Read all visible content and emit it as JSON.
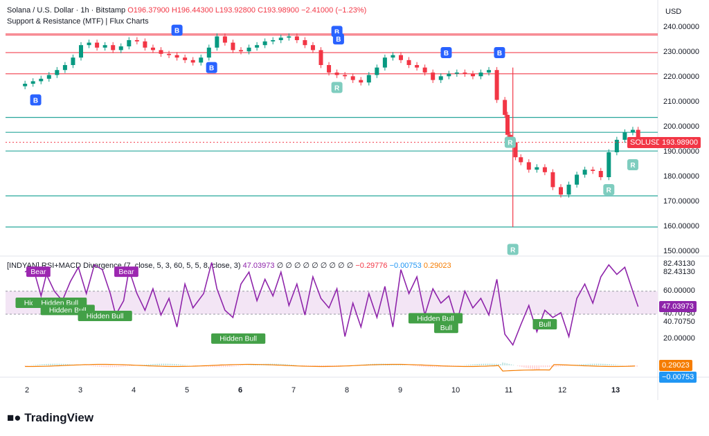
{
  "legend": {
    "symbol": "Solana / U.S. Dollar · 1h · Bitstamp",
    "o": "O196.37900",
    "h": "H196.44300",
    "l": "L193.92800",
    "c": "C193.98900",
    "chg": "−2.41000 (−1.23%)",
    "indicator": "Support & Resistance (MTF) | Flux Charts"
  },
  "rsi_legend": {
    "name": "[INDYAN] RSI+MACD Divergence (7, close, 5, 3, 60, 5, 5, 8, close, 3)",
    "v1": "47.03973",
    "nulls": "∅ ∅ ∅ ∅ ∅ ∅ ∅ ∅ ∅",
    "v2": "−0.29776",
    "v3": "−0.00753",
    "v4": "0.29023"
  },
  "currency": "USD",
  "brand": "TradingView",
  "colors": {
    "up": "#089981",
    "down": "#f23645",
    "rsi": "#8e24aa",
    "support": "#26a69a",
    "resistance": "#f23645",
    "buy": "#2962ff"
  },
  "chart_data": [
    {
      "type": "candlestick",
      "symbol": "SOLUSD",
      "ylim": [
        150,
        240
      ],
      "y_ticks": [
        "240.00000",
        "230.00000",
        "220.00000",
        "210.00000",
        "200.00000",
        "190.00000",
        "180.00000",
        "170.00000",
        "160.00000",
        "150.00000"
      ],
      "x_ticks": [
        "2",
        "3",
        "4",
        "5",
        "6",
        "7",
        "8",
        "9",
        "10",
        "11",
        "12",
        "13"
      ],
      "last_price": "193.98900",
      "last_label": "SOLUSD",
      "x": [
        1.95,
        2.1,
        2.25,
        2.4,
        2.55,
        2.7,
        2.85,
        3.0,
        3.15,
        3.3,
        3.45,
        3.6,
        3.75,
        3.9,
        4.05,
        4.2,
        4.35,
        4.5,
        4.65,
        4.8,
        4.95,
        5.1,
        5.25,
        5.4,
        5.55,
        5.7,
        5.85,
        6.0,
        6.15,
        6.3,
        6.45,
        6.6,
        6.75,
        6.9,
        7.05,
        7.2,
        7.35,
        7.5,
        7.65,
        7.8,
        7.95,
        8.1,
        8.25,
        8.4,
        8.55,
        8.7,
        8.85,
        9.0,
        9.15,
        9.3,
        9.45,
        9.6,
        9.75,
        9.9,
        10.05,
        10.2,
        10.35,
        10.5,
        10.65,
        10.8,
        10.95,
        11.0,
        11.05,
        11.15,
        11.25,
        11.4,
        11.55,
        11.7,
        11.85,
        12.0,
        12.15,
        12.3,
        12.45,
        12.6,
        12.75,
        12.9,
        13.05,
        13.2,
        13.35,
        13.45
      ],
      "close": [
        217.5,
        218.5,
        219.5,
        221,
        223,
        225,
        228,
        233,
        234,
        232,
        233,
        231,
        232.5,
        235,
        234.5,
        232,
        231,
        229.5,
        229,
        228,
        227,
        226,
        228,
        232,
        236.5,
        234,
        231,
        230.5,
        232,
        233,
        234.5,
        235,
        236,
        236.5,
        235,
        233,
        231,
        225,
        222,
        221,
        220.5,
        219,
        218,
        221,
        224,
        228,
        229,
        227,
        225,
        224,
        222,
        219,
        220.5,
        221.5,
        222,
        221.5,
        220.5,
        222,
        223,
        211,
        205,
        197,
        194,
        188,
        186,
        183,
        184,
        182,
        176,
        173,
        177,
        181,
        183,
        182.5,
        180,
        190,
        195,
        198,
        199,
        193.99
      ],
      "support_levels": [
        204,
        198,
        190.5,
        172.5,
        160
      ],
      "resistance_levels": [
        237.5,
        237,
        230,
        221.5
      ],
      "signals": [
        {
          "label": "B",
          "x": 2.15,
          "price": 211,
          "color": "buy"
        },
        {
          "label": "B",
          "x": 4.8,
          "price": 239,
          "color": "buy"
        },
        {
          "label": "B",
          "x": 5.45,
          "price": 224,
          "color": "buy"
        },
        {
          "label": "B",
          "x": 7.8,
          "price": 238.5,
          "color": "buy"
        },
        {
          "label": "B",
          "x": 7.83,
          "price": 235.5,
          "color": "buy"
        },
        {
          "label": "B",
          "x": 9.85,
          "price": 230,
          "color": "buy"
        },
        {
          "label": "B",
          "x": 10.85,
          "price": 230,
          "color": "buy"
        },
        {
          "label": "R",
          "x": 7.8,
          "price": 216,
          "color": "support"
        },
        {
          "label": "R",
          "x": 11.05,
          "price": 194,
          "color": "support"
        },
        {
          "label": "R",
          "x": 11.1,
          "price": 151,
          "color": "support"
        },
        {
          "label": "R",
          "x": 12.9,
          "price": 175,
          "color": "support"
        },
        {
          "label": "R",
          "x": 13.35,
          "price": 185,
          "color": "support"
        }
      ]
    },
    {
      "type": "line",
      "name": "[INDYAN] RSI+MACD Divergence",
      "ylim": [
        15,
        88
      ],
      "y_ticks": [
        "82.43130",
        "82.43130",
        "60.00000",
        "40.70750",
        "40.70750",
        "20.00000"
      ],
      "band": [
        40,
        60
      ],
      "last_value": "47.03973",
      "x": [
        1.95,
        2.1,
        2.25,
        2.35,
        2.5,
        2.65,
        2.8,
        2.95,
        3.1,
        3.25,
        3.4,
        3.55,
        3.65,
        3.8,
        3.9,
        4.05,
        4.2,
        4.35,
        4.5,
        4.65,
        4.8,
        4.95,
        5.1,
        5.3,
        5.45,
        5.55,
        5.7,
        5.85,
        6.0,
        6.15,
        6.3,
        6.45,
        6.6,
        6.75,
        6.9,
        7.05,
        7.2,
        7.35,
        7.5,
        7.65,
        7.8,
        7.95,
        8.1,
        8.25,
        8.4,
        8.55,
        8.7,
        8.85,
        9.0,
        9.15,
        9.3,
        9.45,
        9.6,
        9.75,
        9.9,
        10.05,
        10.2,
        10.35,
        10.5,
        10.65,
        10.8,
        10.95,
        11.1,
        11.25,
        11.4,
        11.55,
        11.7,
        11.85,
        12.0,
        12.15,
        12.3,
        12.45,
        12.6,
        12.75,
        12.9,
        13.05,
        13.2,
        13.35,
        13.45
      ],
      "values": [
        76,
        80,
        56,
        74,
        60,
        52,
        68,
        80,
        58,
        82,
        78,
        58,
        40,
        52,
        78,
        58,
        44,
        62,
        40,
        54,
        30,
        66,
        46,
        58,
        84,
        62,
        44,
        38,
        66,
        76,
        52,
        70,
        56,
        76,
        48,
        66,
        40,
        72,
        54,
        46,
        62,
        22,
        50,
        30,
        58,
        38,
        64,
        30,
        78,
        58,
        72,
        40,
        62,
        50,
        56,
        34,
        60,
        46,
        54,
        40,
        70,
        24,
        15,
        32,
        48,
        26,
        44,
        38,
        42,
        22,
        54,
        66,
        50,
        72,
        82,
        74,
        80,
        60,
        47.04
      ],
      "labels": [
        {
          "text": "Bear",
          "x": 2.2,
          "value": 76,
          "kind": "bear"
        },
        {
          "text": "Bear",
          "x": 3.85,
          "value": 76,
          "kind": "bear"
        },
        {
          "text": "Hidden Bull",
          "x": 2.28,
          "value": 50,
          "kind": "bull"
        },
        {
          "text": "Hidden Bull",
          "x": 2.6,
          "value": 50,
          "kind": "bull"
        },
        {
          "text": "Hidden Bull",
          "x": 2.75,
          "value": 44,
          "kind": "bull"
        },
        {
          "text": "Hidden Bull",
          "x": 3.45,
          "value": 39,
          "kind": "bull"
        },
        {
          "text": "Hidden Bull",
          "x": 5.95,
          "value": 20,
          "kind": "bull"
        },
        {
          "text": "Hidden Bull",
          "x": 9.65,
          "value": 37,
          "kind": "bull"
        },
        {
          "text": "Bull",
          "x": 9.85,
          "value": 29,
          "kind": "bull"
        },
        {
          "text": "Bull",
          "x": 11.7,
          "value": 32,
          "kind": "bull"
        }
      ]
    },
    {
      "type": "line",
      "name": "MACD",
      "ylim": [
        -1.2,
        1.2
      ],
      "values_labels": [
        "0.29023",
        "−0.00753"
      ]
    }
  ]
}
